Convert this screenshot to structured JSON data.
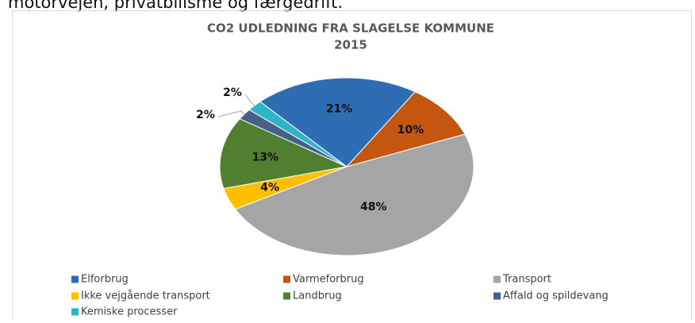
{
  "page_text": "motorvejen, privatbilisme og færgedrift.",
  "chart_data": {
    "type": "pie",
    "title": [
      "CO2 UDLEDNING FRA SLAGELSE KOMMUNE",
      "2015"
    ],
    "categories": [
      "Elforbrug",
      "Varmeforbrug",
      "Transport",
      "Ikke vejgående transport",
      "Landbrug",
      "Affald og spildevang",
      "Kemiske processer"
    ],
    "values": [
      21,
      10,
      48,
      4,
      13,
      2,
      2
    ],
    "value_labels": [
      "21%",
      "10%",
      "48%",
      "4%",
      "13%",
      "2%",
      "2%"
    ],
    "colors": [
      "#2e6db4",
      "#c4560f",
      "#a5a5a5",
      "#ffbf00",
      "#517f30",
      "#46608a",
      "#2fb4c6"
    ],
    "legend": "bottom"
  }
}
